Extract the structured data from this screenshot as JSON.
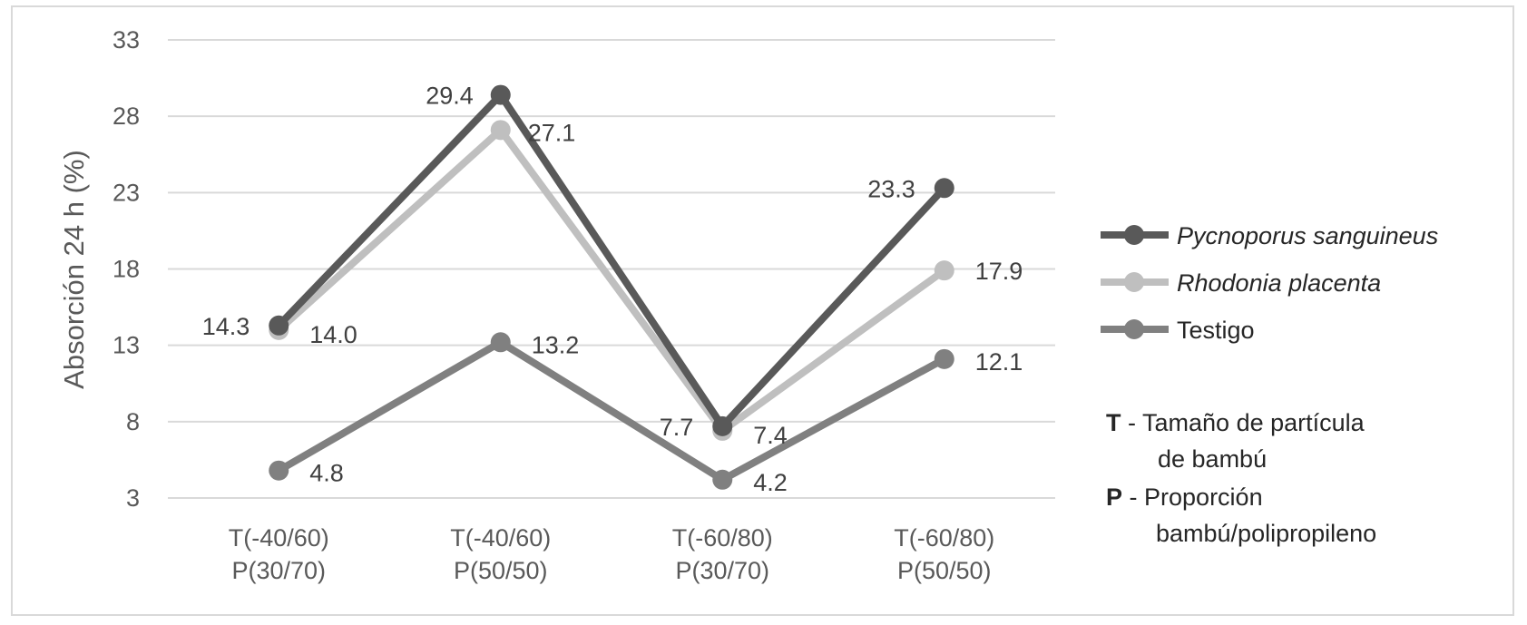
{
  "chart_data": {
    "type": "line",
    "title": "",
    "ylabel": "Absorción 24 h (%)",
    "xlabel": "",
    "ylim": [
      3,
      33
    ],
    "yticks": [
      3,
      8,
      13,
      18,
      23,
      28,
      33
    ],
    "grid": true,
    "legend_position": "right",
    "categories": [
      [
        "T(-40/60)",
        "P(30/70)"
      ],
      [
        "T(-40/60)",
        "P(50/50)"
      ],
      [
        "T(-60/80)",
        "P(30/70)"
      ],
      [
        "T(-60/80)",
        "P(50/50)"
      ]
    ],
    "series": [
      {
        "name": "Pycnoporus sanguineus",
        "italic": true,
        "color": "#595959",
        "values": [
          14.3,
          29.4,
          7.7,
          23.3
        ],
        "labels": [
          "14.3",
          "29.4",
          "7.7",
          "23.3"
        ]
      },
      {
        "name": "Rhodonia placenta",
        "italic": true,
        "color": "#bfbfbf",
        "values": [
          14.0,
          27.1,
          7.4,
          17.9
        ],
        "labels": [
          "14.0",
          "27.1",
          "7.4",
          "17.9"
        ]
      },
      {
        "name": "Testigo",
        "italic": false,
        "color": "#808080",
        "values": [
          4.8,
          13.2,
          4.2,
          12.1
        ],
        "labels": [
          "4.8",
          "13.2",
          "4.2",
          "12.1"
        ]
      }
    ]
  },
  "notes": [
    {
      "key": "T",
      "sep": " -  ",
      "lines": [
        "Tamaño de partícula",
        "de bambú"
      ]
    },
    {
      "key": "P",
      "sep": " - ",
      "lines": [
        "Proporción",
        "bambú/polipropileno"
      ]
    }
  ]
}
